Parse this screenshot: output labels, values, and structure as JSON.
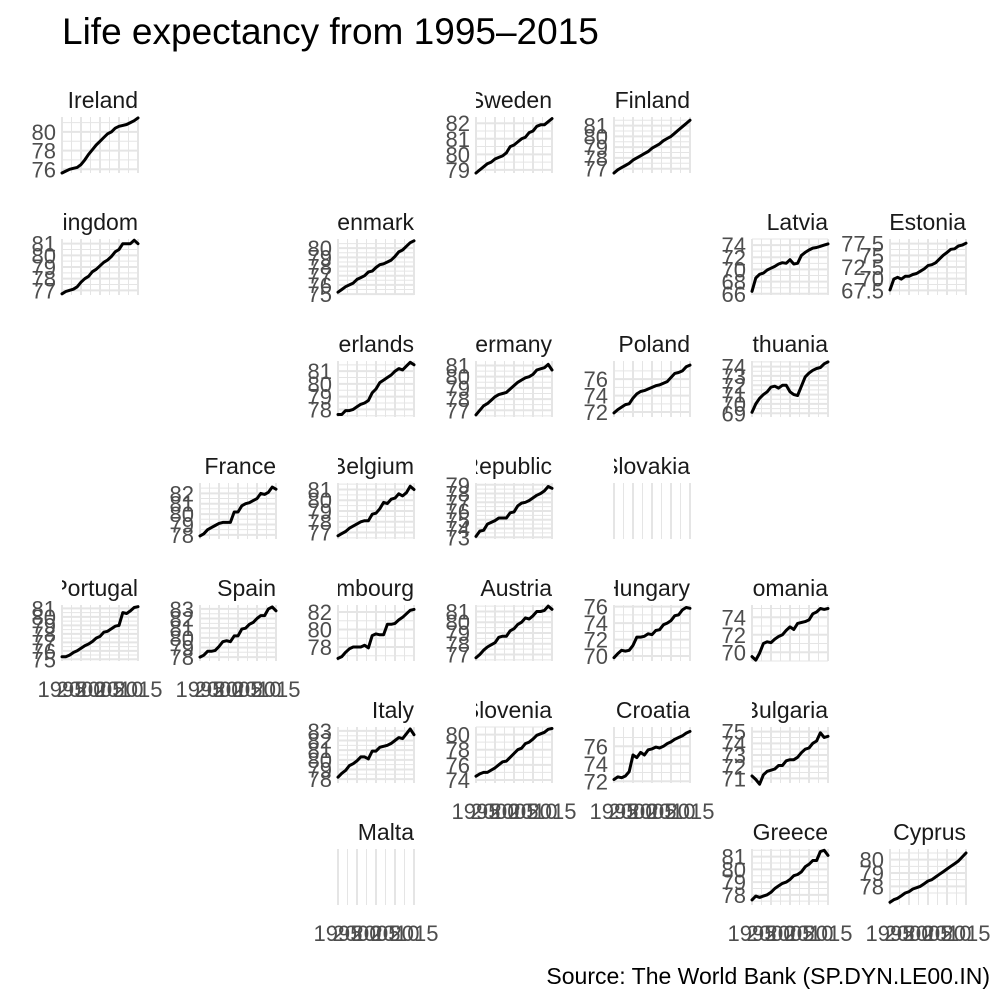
{
  "title": "Life expectancy from 1995–2015",
  "caption": "Source: The World Bank (SP.DYN.LE00.IN)",
  "chart_data": {
    "type": "line",
    "layout": "geofacet grid of small multiples",
    "x_ticks": [
      1995,
      2000,
      2005,
      2010,
      2015
    ],
    "x_range": [
      1995,
      2015
    ],
    "grid": true,
    "line_color": "#000000",
    "panels": [
      {
        "name": "Ireland",
        "row": 0,
        "col": 0,
        "y_ticks": [
          76,
          78,
          80
        ],
        "ylim": [
          75.6,
          81.6
        ],
        "show_x": false,
        "values": [
          75.6,
          75.8,
          76.0,
          76.1,
          76.2,
          76.5,
          77.0,
          77.6,
          78.1,
          78.6,
          79.0,
          79.4,
          79.8,
          80.0,
          80.4,
          80.6,
          80.7,
          80.8,
          81.0,
          81.2,
          81.5
        ]
      },
      {
        "name": "Sweden",
        "row": 0,
        "col": 3,
        "y_ticks": [
          79,
          80,
          81,
          82
        ],
        "ylim": [
          78.8,
          82.4
        ],
        "show_x": false,
        "values": [
          78.8,
          79.0,
          79.2,
          79.4,
          79.5,
          79.7,
          79.8,
          79.9,
          80.1,
          80.5,
          80.6,
          80.8,
          81.0,
          81.1,
          81.4,
          81.5,
          81.8,
          81.9,
          81.9,
          82.1,
          82.3
        ]
      },
      {
        "name": "Finland",
        "row": 0,
        "col": 4,
        "y_ticks": [
          77,
          78,
          79,
          80,
          81
        ],
        "ylim": [
          76.6,
          81.8
        ],
        "show_x": false,
        "values": [
          76.6,
          76.9,
          77.1,
          77.3,
          77.5,
          77.8,
          78.0,
          78.2,
          78.4,
          78.6,
          78.9,
          79.1,
          79.3,
          79.6,
          79.8,
          80.0,
          80.3,
          80.6,
          80.9,
          81.2,
          81.5
        ]
      },
      {
        "name": "United Kingdom",
        "row": 1,
        "col": 0,
        "y_ticks": [
          77,
          78,
          79,
          80,
          81
        ],
        "ylim": [
          76.6,
          81.4
        ],
        "show_x": false,
        "values": [
          76.7,
          76.9,
          77.0,
          77.1,
          77.3,
          77.7,
          78.0,
          78.2,
          78.6,
          78.8,
          79.1,
          79.4,
          79.6,
          79.9,
          80.3,
          80.5,
          81.0,
          81.0,
          81.0,
          81.3,
          81.0
        ]
      },
      {
        "name": "Denmark",
        "row": 1,
        "col": 2,
        "y_ticks": [
          75,
          76,
          77,
          78,
          79,
          80
        ],
        "ylim": [
          74.9,
          81.0
        ],
        "show_x": false,
        "values": [
          75.2,
          75.5,
          75.8,
          76.0,
          76.2,
          76.6,
          76.8,
          77.0,
          77.4,
          77.5,
          77.9,
          78.2,
          78.3,
          78.5,
          78.7,
          79.1,
          79.6,
          79.8,
          80.2,
          80.6,
          80.8
        ]
      },
      {
        "name": "Latvia",
        "row": 1,
        "col": 5,
        "y_ticks": [
          66,
          68,
          70,
          72,
          74
        ],
        "ylim": [
          65.8,
          75.0
        ],
        "show_x": false,
        "values": [
          66.4,
          68.6,
          69.2,
          69.4,
          69.9,
          70.2,
          70.5,
          70.9,
          71.1,
          71.0,
          71.6,
          70.9,
          71.0,
          72.3,
          72.8,
          73.2,
          73.5,
          73.6,
          73.8,
          74.0,
          74.2
        ]
      },
      {
        "name": "Estonia",
        "row": 1,
        "col": 6,
        "y_ticks": [
          67.5,
          70.0,
          72.5,
          75.0,
          77.5
        ],
        "ylim": [
          66.5,
          78.5
        ],
        "show_x": false,
        "values": [
          67.6,
          69.9,
          70.3,
          69.9,
          70.5,
          70.5,
          70.9,
          71.1,
          71.6,
          72.1,
          72.8,
          73.0,
          73.4,
          74.2,
          75.0,
          75.6,
          76.3,
          76.4,
          77.0,
          77.2,
          77.6
        ]
      },
      {
        "name": "Netherlands",
        "row": 2,
        "col": 2,
        "y_ticks": [
          78,
          79,
          80,
          81
        ],
        "ylim": [
          77.4,
          81.8
        ],
        "show_x": false,
        "values": [
          77.6,
          77.6,
          77.9,
          77.9,
          78.0,
          78.2,
          78.4,
          78.5,
          78.7,
          79.3,
          79.6,
          80.1,
          80.3,
          80.5,
          80.7,
          81.0,
          81.2,
          81.1,
          81.4,
          81.7,
          81.5
        ]
      },
      {
        "name": "Germany",
        "row": 2,
        "col": 3,
        "y_ticks": [
          77,
          78,
          79,
          80,
          81
        ],
        "ylim": [
          76.4,
          81.4
        ],
        "show_x": false,
        "values": [
          76.6,
          77.0,
          77.4,
          77.6,
          77.9,
          78.2,
          78.4,
          78.5,
          78.6,
          78.9,
          79.2,
          79.5,
          79.7,
          79.9,
          80.0,
          80.2,
          80.6,
          80.7,
          80.8,
          81.1,
          80.6
        ]
      },
      {
        "name": "Poland",
        "row": 2,
        "col": 4,
        "y_ticks": [
          72,
          74,
          76
        ],
        "ylim": [
          71.4,
          78.2
        ],
        "show_x": false,
        "values": [
          71.9,
          72.3,
          72.6,
          72.9,
          73.0,
          73.7,
          74.2,
          74.5,
          74.6,
          74.8,
          75.0,
          75.2,
          75.3,
          75.5,
          75.7,
          76.2,
          76.7,
          76.8,
          77.0,
          77.5,
          77.7
        ]
      },
      {
        "name": "Lithuania",
        "row": 2,
        "col": 5,
        "y_ticks": [
          69,
          70,
          71,
          72,
          73,
          74
        ],
        "ylim": [
          68.6,
          74.6
        ],
        "show_x": false,
        "values": [
          69.1,
          70.0,
          70.6,
          71.0,
          71.3,
          71.8,
          71.9,
          71.7,
          72.0,
          72.0,
          71.3,
          71.0,
          70.9,
          71.9,
          72.9,
          73.3,
          73.6,
          73.8,
          73.9,
          74.3,
          74.5
        ]
      },
      {
        "name": "France",
        "row": 3,
        "col": 1,
        "y_ticks": [
          78,
          79,
          80,
          81,
          82
        ],
        "ylim": [
          77.6,
          83.0
        ],
        "show_x": false,
        "values": [
          77.9,
          78.1,
          78.5,
          78.7,
          78.9,
          79.1,
          79.2,
          79.2,
          79.2,
          80.2,
          80.2,
          80.8,
          81.0,
          81.1,
          81.3,
          81.5,
          82.0,
          81.9,
          82.1,
          82.6,
          82.4
        ]
      },
      {
        "name": "Belgium",
        "row": 3,
        "col": 2,
        "y_ticks": [
          77,
          78,
          79,
          80,
          81
        ],
        "ylim": [
          76.4,
          81.6
        ],
        "show_x": false,
        "values": [
          76.7,
          76.9,
          77.1,
          77.4,
          77.6,
          77.8,
          78.0,
          78.1,
          78.1,
          78.7,
          78.8,
          79.2,
          79.8,
          79.7,
          80.1,
          80.2,
          80.6,
          80.4,
          80.7,
          81.3,
          81.0
        ]
      },
      {
        "name": "Czech Republic",
        "row": 3,
        "col": 3,
        "y_ticks": [
          73,
          74,
          75,
          76,
          77,
          78,
          79
        ],
        "ylim": [
          72.8,
          79.2
        ],
        "show_x": false,
        "values": [
          73.1,
          73.7,
          73.8,
          74.5,
          74.7,
          74.9,
          75.2,
          75.2,
          75.2,
          75.8,
          75.9,
          76.6,
          76.9,
          77.0,
          77.2,
          77.5,
          77.8,
          78.0,
          78.3,
          78.8,
          78.6
        ]
      },
      {
        "name": "Slovakia",
        "row": 3,
        "col": 4,
        "y_ticks": [],
        "ylim": [
          0,
          1
        ],
        "show_x": false,
        "values": []
      },
      {
        "name": "Portugal",
        "row": 4,
        "col": 0,
        "y_ticks": [
          75,
          76,
          77,
          78,
          79,
          80,
          81
        ],
        "ylim": [
          74.8,
          81.4
        ],
        "show_x": true,
        "values": [
          75.3,
          75.3,
          75.5,
          75.8,
          76.0,
          76.3,
          76.6,
          76.8,
          77.1,
          77.5,
          77.7,
          78.2,
          78.3,
          78.6,
          78.9,
          79.0,
          80.5,
          80.4,
          80.7,
          81.1,
          81.2
        ]
      },
      {
        "name": "Spain",
        "row": 4,
        "col": 1,
        "y_ticks": [
          78,
          79,
          80,
          81,
          82,
          83
        ],
        "ylim": [
          77.6,
          83.4
        ],
        "show_x": true,
        "values": [
          78.0,
          78.2,
          78.6,
          78.6,
          78.7,
          79.1,
          79.6,
          79.7,
          79.6,
          80.2,
          80.2,
          80.9,
          81.0,
          81.4,
          81.6,
          82.0,
          82.3,
          82.3,
          83.0,
          83.2,
          82.8
        ]
      },
      {
        "name": "Luxembourg",
        "row": 4,
        "col": 2,
        "y_ticks": [
          78,
          80,
          82
        ],
        "ylim": [
          76.4,
          82.8
        ],
        "show_x": false,
        "values": [
          76.7,
          76.9,
          77.4,
          77.8,
          78.0,
          78.0,
          78.0,
          78.2,
          77.9,
          79.3,
          79.5,
          79.4,
          79.4,
          80.6,
          80.6,
          80.7,
          81.1,
          81.4,
          81.8,
          82.2,
          82.3
        ]
      },
      {
        "name": "Austria",
        "row": 4,
        "col": 3,
        "y_ticks": [
          77,
          78,
          79,
          80,
          81
        ],
        "ylim": [
          76.4,
          81.6
        ],
        "show_x": false,
        "values": [
          76.7,
          77.0,
          77.4,
          77.7,
          77.9,
          78.1,
          78.6,
          78.7,
          78.7,
          79.2,
          79.4,
          79.8,
          80.0,
          80.4,
          80.3,
          80.6,
          81.0,
          81.0,
          81.1,
          81.5,
          81.2
        ]
      },
      {
        "name": "Hungary",
        "row": 4,
        "col": 4,
        "y_ticks": [
          70,
          72,
          74,
          76
        ],
        "ylim": [
          69.4,
          76.2
        ],
        "show_x": false,
        "values": [
          69.8,
          70.3,
          70.7,
          70.6,
          70.7,
          71.3,
          72.3,
          72.3,
          72.4,
          72.7,
          72.6,
          73.1,
          73.2,
          73.8,
          74.0,
          74.3,
          74.9,
          75.0,
          75.6,
          75.9,
          75.8
        ]
      },
      {
        "name": "Romania",
        "row": 4,
        "col": 5,
        "y_ticks": [
          70,
          72,
          74
        ],
        "ylim": [
          69.0,
          75.4
        ],
        "show_x": false,
        "values": [
          69.5,
          69.1,
          69.9,
          71.0,
          71.2,
          71.1,
          71.5,
          71.8,
          72.0,
          72.5,
          72.9,
          72.6,
          73.3,
          73.4,
          73.5,
          73.7,
          74.4,
          74.6,
          75.0,
          74.9,
          75.0
        ]
      },
      {
        "name": "Italy",
        "row": 5,
        "col": 2,
        "y_ticks": [
          78,
          79,
          80,
          81,
          82,
          83
        ],
        "ylim": [
          77.6,
          83.4
        ],
        "show_x": false,
        "values": [
          78.2,
          78.6,
          78.9,
          79.4,
          79.6,
          79.9,
          80.3,
          80.3,
          80.1,
          80.9,
          80.9,
          81.3,
          81.4,
          81.5,
          81.7,
          82.0,
          82.3,
          82.2,
          82.7,
          83.2,
          82.6
        ]
      },
      {
        "name": "Slovenia",
        "row": 5,
        "col": 3,
        "y_ticks": [
          74,
          76,
          78,
          80
        ],
        "ylim": [
          73.6,
          81.0
        ],
        "show_x": true,
        "values": [
          74.5,
          74.8,
          75.0,
          75.0,
          75.3,
          75.6,
          76.0,
          76.4,
          76.5,
          77.0,
          77.5,
          78.0,
          78.2,
          78.8,
          79.0,
          79.4,
          79.9,
          80.1,
          80.3,
          80.7,
          80.8
        ]
      },
      {
        "name": "Croatia",
        "row": 5,
        "col": 4,
        "y_ticks": [
          72,
          74,
          76
        ],
        "ylim": [
          71.8,
          78.2
        ],
        "show_x": true,
        "values": [
          72.2,
          72.5,
          72.4,
          72.6,
          73.1,
          75.0,
          74.7,
          75.3,
          75.0,
          75.6,
          75.7,
          75.9,
          75.8,
          76.0,
          76.3,
          76.5,
          76.8,
          77.0,
          77.2,
          77.5,
          77.7
        ]
      },
      {
        "name": "Bulgaria",
        "row": 5,
        "col": 5,
        "y_ticks": [
          71,
          72,
          73,
          74,
          75
        ],
        "ylim": [
          70.6,
          75.4
        ],
        "show_x": false,
        "values": [
          71.2,
          70.9,
          70.5,
          71.3,
          71.6,
          71.7,
          71.8,
          72.1,
          72.1,
          72.5,
          72.6,
          72.6,
          72.8,
          73.2,
          73.5,
          73.6,
          74.0,
          74.2,
          74.9,
          74.5,
          74.6
        ]
      },
      {
        "name": "Malta",
        "row": 6,
        "col": 2,
        "y_ticks": [],
        "ylim": [
          0,
          1
        ],
        "show_x": true,
        "values": []
      },
      {
        "name": "Greece",
        "row": 6,
        "col": 5,
        "y_ticks": [
          78,
          79,
          80,
          81
        ],
        "ylim": [
          77.2,
          81.6
        ],
        "show_x": true,
        "values": [
          77.6,
          77.9,
          77.8,
          77.9,
          78.0,
          78.2,
          78.5,
          78.7,
          78.9,
          79.0,
          79.2,
          79.5,
          79.6,
          79.8,
          80.2,
          80.4,
          80.7,
          80.7,
          81.4,
          81.5,
          81.1
        ]
      },
      {
        "name": "Cyprus",
        "row": 6,
        "col": 6,
        "y_ticks": [
          78,
          79,
          80
        ],
        "ylim": [
          76.6,
          80.8
        ],
        "show_x": true,
        "values": [
          76.8,
          77.0,
          77.1,
          77.3,
          77.5,
          77.6,
          77.8,
          77.9,
          78.0,
          78.2,
          78.4,
          78.5,
          78.7,
          78.9,
          79.1,
          79.3,
          79.5,
          79.7,
          79.9,
          80.2,
          80.5
        ]
      }
    ]
  }
}
